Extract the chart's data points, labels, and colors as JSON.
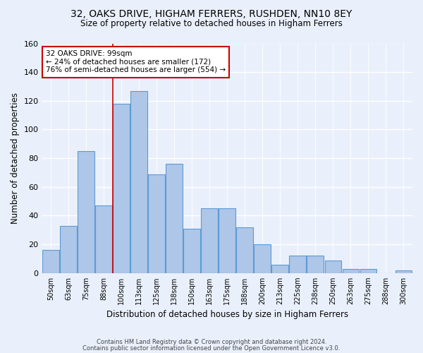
{
  "title": "32, OAKS DRIVE, HIGHAM FERRERS, RUSHDEN, NN10 8EY",
  "subtitle": "Size of property relative to detached houses in Higham Ferrers",
  "xlabel": "Distribution of detached houses by size in Higham Ferrers",
  "ylabel": "Number of detached properties",
  "bins": [
    "50sqm",
    "63sqm",
    "75sqm",
    "88sqm",
    "100sqm",
    "113sqm",
    "125sqm",
    "138sqm",
    "150sqm",
    "163sqm",
    "175sqm",
    "188sqm",
    "200sqm",
    "213sqm",
    "225sqm",
    "238sqm",
    "250sqm",
    "263sqm",
    "275sqm",
    "288sqm",
    "300sqm"
  ],
  "values": [
    16,
    33,
    85,
    47,
    118,
    127,
    69,
    76,
    31,
    45,
    45,
    32,
    20,
    6,
    12,
    12,
    9,
    3,
    3,
    0,
    2
  ],
  "bar_color": "#aec6e8",
  "bar_edge_color": "#5b9bd5",
  "vline_x": 3.5,
  "annotation_text": "32 OAKS DRIVE: 99sqm\n← 24% of detached houses are smaller (172)\n76% of semi-detached houses are larger (554) →",
  "annotation_box_color": "#ffffff",
  "annotation_box_edge": "#cc0000",
  "vline_color": "#cc0000",
  "ylim": [
    0,
    160
  ],
  "yticks": [
    0,
    20,
    40,
    60,
    80,
    100,
    120,
    140,
    160
  ],
  "footer1": "Contains HM Land Registry data © Crown copyright and database right 2024.",
  "footer2": "Contains public sector information licensed under the Open Government Licence v3.0.",
  "bg_color": "#eaf0fb",
  "grid_color": "#ffffff",
  "title_fontsize": 10,
  "subtitle_fontsize": 8.5,
  "tick_fontsize": 7,
  "ylabel_fontsize": 8.5,
  "xlabel_fontsize": 8.5,
  "ann_fontsize": 7.5,
  "footer_fontsize": 6.0
}
